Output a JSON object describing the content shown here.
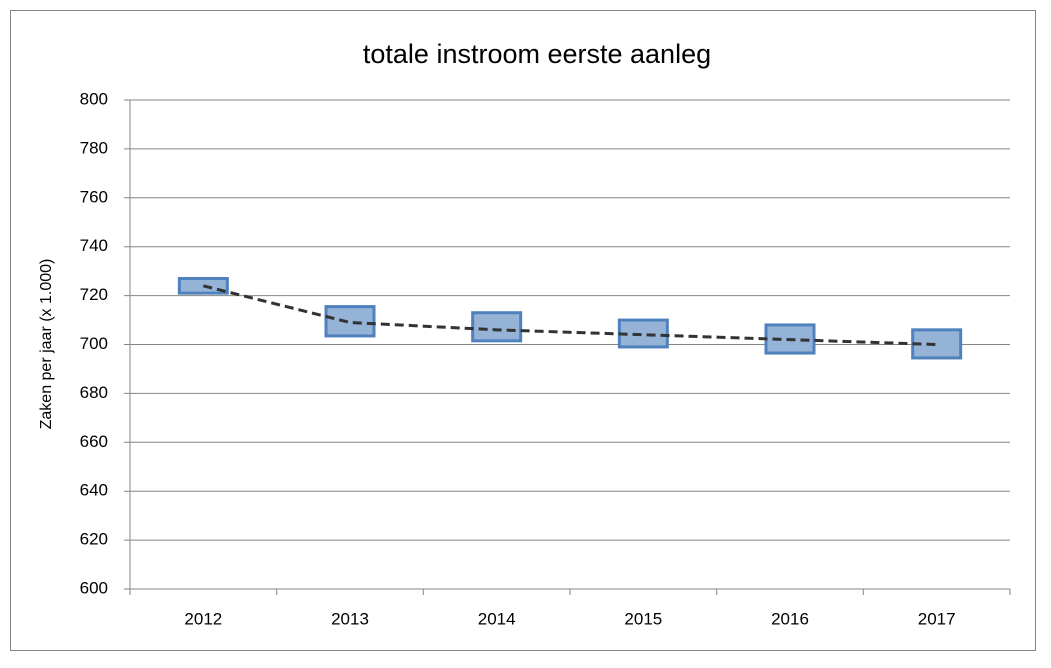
{
  "chart_data": {
    "type": "line",
    "title": "totale instroom eerste aanleg",
    "y_label": "Zaken per jaar (x 1.000)",
    "categories": [
      "2012",
      "2013",
      "2014",
      "2015",
      "2016",
      "2017"
    ],
    "series": [
      {
        "color": "#333333",
        "values": [
          724,
          709,
          706,
          704,
          702,
          700
        ]
      }
    ],
    "boxes": {
      "color": "#95b3d7",
      "edge_color": "#4f81bd",
      "low": [
        721,
        703.5,
        701.5,
        699,
        696.5,
        694.5
      ],
      "high": [
        727,
        715.5,
        713,
        710,
        708,
        706
      ]
    },
    "ylim": [
      600,
      800
    ],
    "yticks": [
      600,
      620,
      640,
      660,
      680,
      700,
      720,
      740,
      760,
      780,
      800
    ],
    "grid": true
  }
}
